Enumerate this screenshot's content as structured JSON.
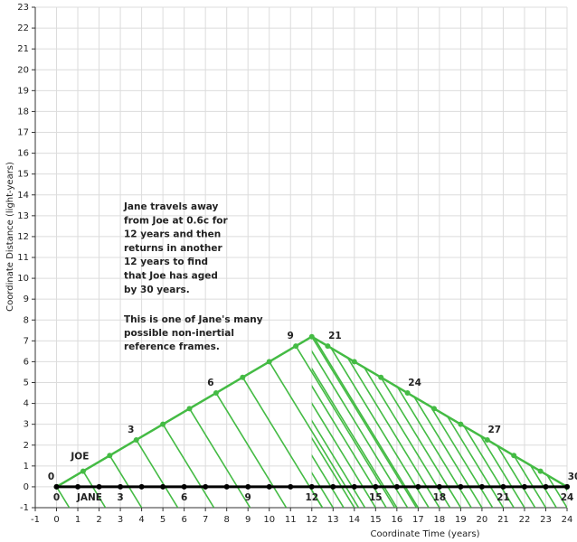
{
  "chart_data": {
    "type": "line",
    "x_label": "Coordinate Time (years)",
    "y_label": "Coordinate Distance (light-years)",
    "xlim": [
      -1,
      24
    ],
    "ylim": [
      -1,
      23
    ],
    "xticks": [
      -1,
      0,
      1,
      2,
      3,
      4,
      5,
      6,
      7,
      8,
      9,
      10,
      11,
      12,
      13,
      14,
      15,
      16,
      17,
      18,
      19,
      20,
      21,
      22,
      23,
      24
    ],
    "yticks": [
      -1,
      0,
      1,
      2,
      3,
      4,
      5,
      6,
      7,
      8,
      9,
      10,
      11,
      12,
      13,
      14,
      15,
      16,
      17,
      18,
      19,
      20,
      21,
      22,
      23
    ],
    "grid": true,
    "annotations": [
      {
        "lines": [
          "Jane travels away",
          "from Joe at 0.6c for",
          "12 years and then",
          "returns in another",
          "12 years to find",
          "that Joe has aged",
          "by 30 years."
        ]
      },
      {
        "lines": [
          "This is one of Jane's many",
          "possible non-inertial",
          "reference frames."
        ]
      }
    ],
    "series": [
      {
        "name": "JOE",
        "color": "#44bb44",
        "x": [
          0,
          1.25,
          2.5,
          3.75,
          5,
          6.25,
          7.5,
          8.75,
          10,
          11.25,
          12,
          12.75,
          14,
          15.25,
          16.5,
          17.75,
          19,
          20.25,
          21.5,
          22.75,
          24
        ],
        "values": [
          0,
          0.75,
          1.5,
          2.25,
          3,
          3.75,
          4.5,
          5.25,
          6,
          6.75,
          7.2,
          6.75,
          6,
          5.25,
          4.5,
          3.75,
          3,
          2.25,
          1.5,
          0.75,
          0
        ],
        "clock_labels": [
          0,
          null,
          null,
          3,
          null,
          null,
          6,
          null,
          null,
          9,
          null,
          21,
          null,
          null,
          24,
          null,
          null,
          27,
          null,
          null,
          30
        ]
      },
      {
        "name": "JANE",
        "color": "#000000",
        "x": [
          0,
          1,
          2,
          3,
          4,
          5,
          6,
          7,
          8,
          9,
          10,
          11,
          12,
          13,
          14,
          15,
          16,
          17,
          18,
          19,
          20,
          21,
          22,
          23,
          24
        ],
        "values": [
          0,
          0,
          0,
          0,
          0,
          0,
          0,
          0,
          0,
          0,
          0,
          0,
          0,
          0,
          0,
          0,
          0,
          0,
          0,
          0,
          0,
          0,
          0,
          0,
          0
        ],
        "clock_labels": [
          0,
          null,
          null,
          3,
          null,
          null,
          6,
          null,
          null,
          9,
          null,
          null,
          12,
          null,
          null,
          15,
          null,
          null,
          18,
          null,
          null,
          21,
          null,
          null,
          24
        ]
      }
    ]
  }
}
